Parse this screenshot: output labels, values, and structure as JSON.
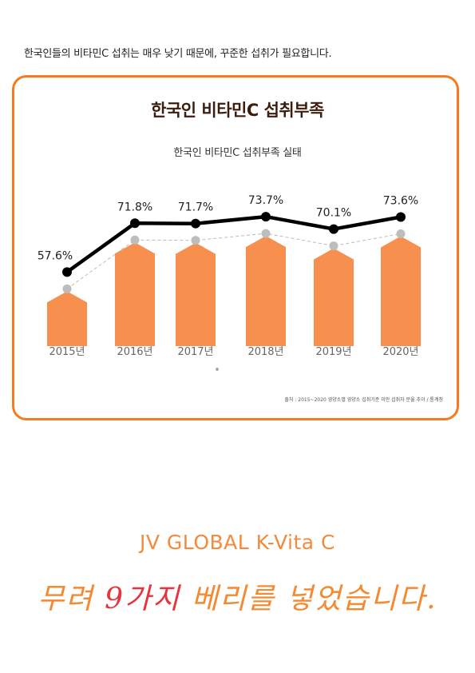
{
  "intro_text": "한국인들의 비타민C 섭취는 매우 낮기 때문에, 꾸준한 섭취가 필요합니다.",
  "chart_data": {
    "type": "bar",
    "title": "한국인 비타민C 섭취부족",
    "subtitle": "한국인 비타민C 섭취부족 실태",
    "categories": [
      "2015년",
      "2016년",
      "2017년",
      "2018년",
      "2019년",
      "2020년"
    ],
    "values": [
      57.6,
      71.8,
      71.7,
      73.7,
      70.1,
      73.6
    ],
    "value_labels": [
      "57.6%",
      "71.8%",
      "71.7%",
      "73.7%",
      "70.1%",
      "73.6%"
    ],
    "overlay_line": true,
    "source": "출처 : 2015~2020 영양소별 영양소 섭취기준 미만 섭취자 분율 추이 / 통계청",
    "colors": {
      "bar": "#f7904f",
      "line": "#000000",
      "dashed": "#bbbbbb",
      "border": "#f47b20"
    }
  },
  "brand": "JV GLOBAL K-Vita C",
  "slogan": {
    "part1": "무려 ",
    "highlight": "9가지",
    "part2": " 베리를 넣었습니다."
  }
}
